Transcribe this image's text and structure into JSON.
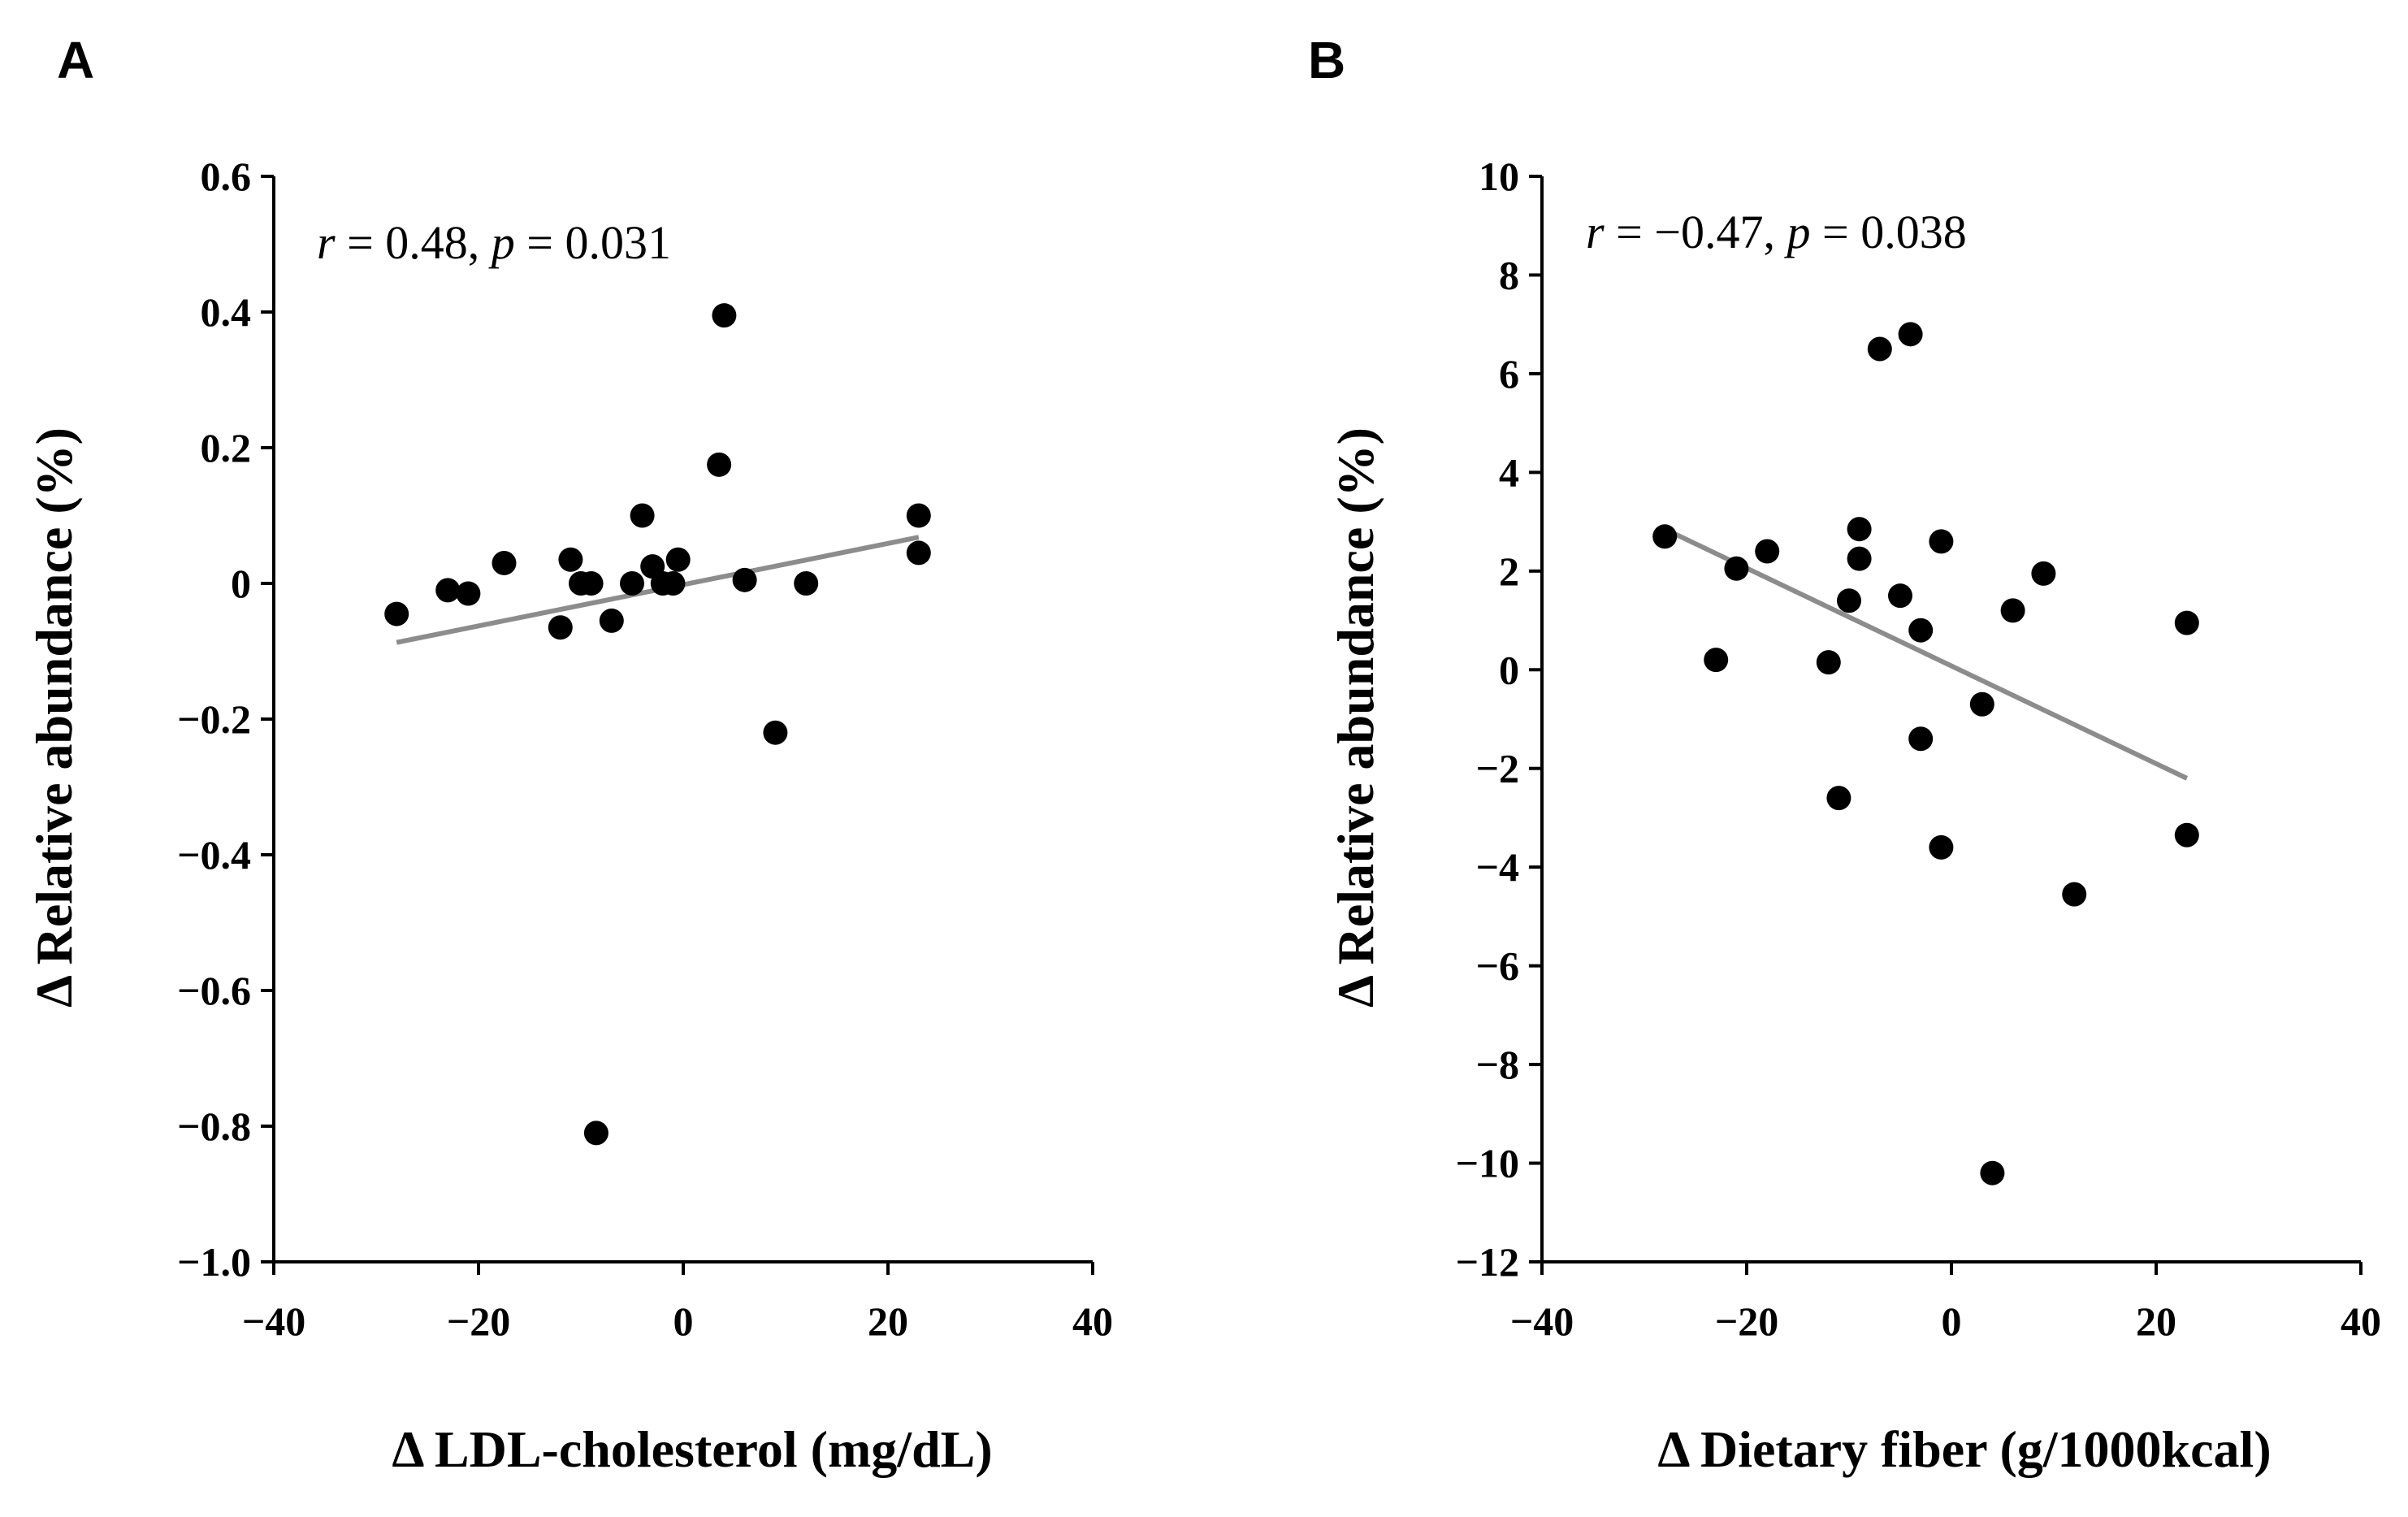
{
  "chart_data": [
    {
      "type": "scatter",
      "panel_label": "A",
      "xlabel": "Δ LDL-cholesterol (mg/dL)",
      "ylabel": "Δ Relative abundance (%)",
      "xlim": [
        -40,
        40
      ],
      "ylim": [
        -1.0,
        0.6
      ],
      "xticks": [
        -40,
        -20,
        0,
        20,
        40
      ],
      "xtick_labels": [
        "−40",
        "−20",
        "0",
        "20",
        "40"
      ],
      "yticks": [
        0.6,
        0.4,
        0.2,
        0,
        -0.2,
        -0.4,
        -0.6,
        -0.8,
        -1.0
      ],
      "ytick_labels": [
        "0.6",
        "0.4",
        "0.2",
        "0",
        "−0.2",
        "−0.4",
        "−0.6",
        "−0.8",
        "−1.0"
      ],
      "annotation": {
        "r_symbol": "r",
        "r_value": " = 0.48, ",
        "p_symbol": "p",
        "p_value": " = 0.031"
      },
      "points": [
        {
          "x": -28,
          "y": -0.045
        },
        {
          "x": -23,
          "y": -0.01
        },
        {
          "x": -21,
          "y": -0.015
        },
        {
          "x": -17.5,
          "y": 0.03
        },
        {
          "x": -12,
          "y": -0.065
        },
        {
          "x": -11,
          "y": 0.035
        },
        {
          "x": -10,
          "y": 0.0
        },
        {
          "x": -9,
          "y": 0.0
        },
        {
          "x": -8.5,
          "y": -0.81
        },
        {
          "x": -7,
          "y": -0.055
        },
        {
          "x": -5,
          "y": 0.0
        },
        {
          "x": -4,
          "y": 0.1
        },
        {
          "x": -3,
          "y": 0.025
        },
        {
          "x": -2,
          "y": 0.0
        },
        {
          "x": -1,
          "y": 0.0
        },
        {
          "x": -0.5,
          "y": 0.035
        },
        {
          "x": 4,
          "y": 0.395
        },
        {
          "x": 3.5,
          "y": 0.175
        },
        {
          "x": 6,
          "y": 0.005
        },
        {
          "x": 9,
          "y": -0.22
        },
        {
          "x": 12,
          "y": 0.0
        },
        {
          "x": 23,
          "y": 0.1
        },
        {
          "x": 23,
          "y": 0.045
        }
      ],
      "trendline": {
        "x": [
          -28,
          23
        ],
        "y": [
          -0.087,
          0.068
        ]
      },
      "trendline_color": "#8c8c8c",
      "marker_color": "#000000"
    },
    {
      "type": "scatter",
      "panel_label": "B",
      "xlabel": "Δ Dietary fiber (g/1000kcal)",
      "ylabel": "Δ Relative abundance (%)",
      "xlim": [
        -40,
        40
      ],
      "ylim": [
        -12,
        10
      ],
      "xticks": [
        -40,
        -20,
        0,
        20,
        40
      ],
      "xtick_labels": [
        "−40",
        "−20",
        "0",
        "20",
        "40"
      ],
      "yticks": [
        10,
        8,
        6,
        4,
        2,
        0,
        -2,
        -4,
        -6,
        -8,
        -10,
        -12
      ],
      "ytick_labels": [
        "10",
        "8",
        "6",
        "4",
        "2",
        "0",
        "−2",
        "−4",
        "−6",
        "−8",
        "−10",
        "−12"
      ],
      "annotation": {
        "r_symbol": "r",
        "r_value": " = −0.47, ",
        "p_symbol": "p",
        "p_value": " = 0.038"
      },
      "points": [
        {
          "x": -28,
          "y": 2.7
        },
        {
          "x": -23,
          "y": 0.2
        },
        {
          "x": -21,
          "y": 2.05
        },
        {
          "x": -18,
          "y": 2.4
        },
        {
          "x": -12,
          "y": 0.15
        },
        {
          "x": -11,
          "y": -2.6
        },
        {
          "x": -10,
          "y": 1.4
        },
        {
          "x": -9,
          "y": 2.85
        },
        {
          "x": -9,
          "y": 2.25
        },
        {
          "x": -7,
          "y": 6.5
        },
        {
          "x": -5,
          "y": 1.5
        },
        {
          "x": -4,
          "y": 6.8
        },
        {
          "x": -3,
          "y": 0.8
        },
        {
          "x": -3,
          "y": -1.4
        },
        {
          "x": -1,
          "y": 2.6
        },
        {
          "x": -1,
          "y": -3.6
        },
        {
          "x": 3,
          "y": -0.7
        },
        {
          "x": 4,
          "y": -10.2
        },
        {
          "x": 6,
          "y": 1.2
        },
        {
          "x": 9,
          "y": 1.95
        },
        {
          "x": 12,
          "y": -4.55
        },
        {
          "x": 23,
          "y": 0.95
        },
        {
          "x": 23,
          "y": -3.35
        }
      ],
      "trendline": {
        "x": [
          -28,
          23
        ],
        "y": [
          2.85,
          -2.2
        ]
      },
      "trendline_color": "#8c8c8c",
      "marker_color": "#000000"
    }
  ]
}
